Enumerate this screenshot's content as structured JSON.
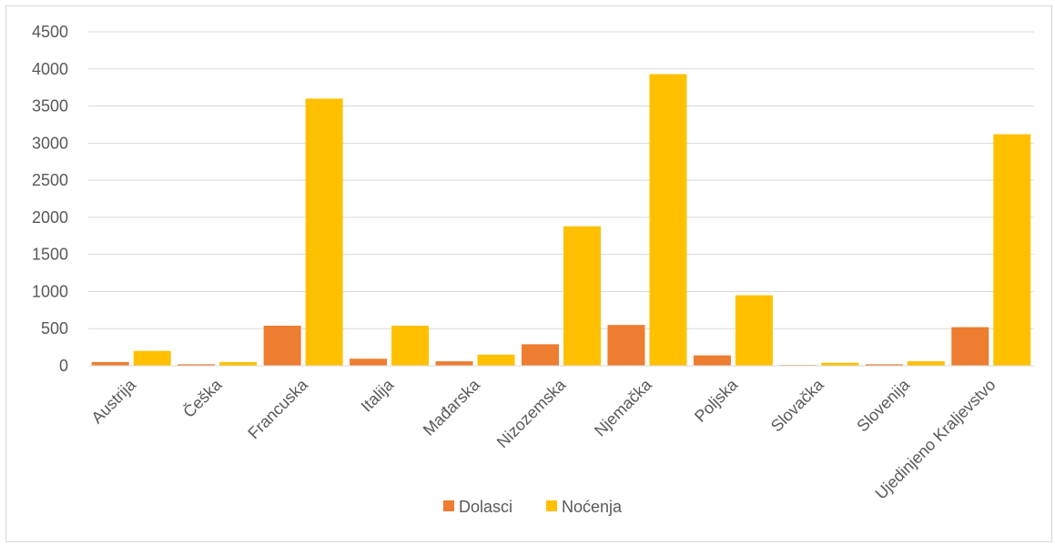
{
  "chart_data": {
    "type": "bar",
    "categories": [
      "Austrija",
      "Češka",
      "Francuska",
      "Italija",
      "Mađarska",
      "Nizozemska",
      "Njemačka",
      "Poljska",
      "Slovačka",
      "Slovenija",
      "Ujedinjeno Kraljevstvo"
    ],
    "series": [
      {
        "name": "Dolasci",
        "color": "#ED7D31",
        "values": [
          50,
          20,
          540,
          95,
          60,
          290,
          550,
          140,
          10,
          20,
          520
        ]
      },
      {
        "name": "Noćenja",
        "color": "#FFC000",
        "values": [
          200,
          50,
          3600,
          540,
          150,
          1880,
          3930,
          950,
          40,
          60,
          3120
        ]
      }
    ],
    "title": "",
    "xlabel": "",
    "ylabel": "",
    "ylim": [
      0,
      4500
    ],
    "yticks": [
      0,
      500,
      1000,
      1500,
      2000,
      2500,
      3000,
      3500,
      4000,
      4500
    ],
    "grid": true,
    "legend": "bottom"
  }
}
